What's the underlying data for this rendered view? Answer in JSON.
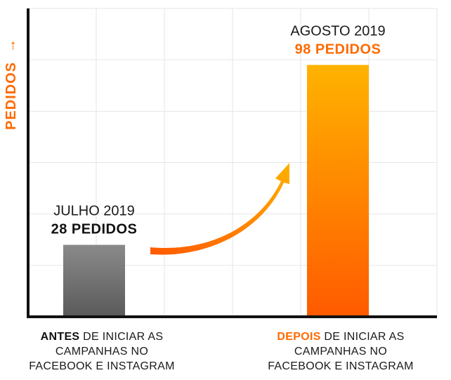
{
  "chart_data": {
    "type": "bar",
    "ylabel": "PEDIDOS",
    "ylabel_arrow": "→",
    "ylim": [
      0,
      120
    ],
    "grid": true,
    "categories": [
      {
        "highlight": "ANTES",
        "rest_line1": " DE INICIAR AS",
        "line2": "CAMPANHAS NO",
        "line3": "FACEBOOK E INSTAGRAM"
      },
      {
        "highlight": "DEPOIS",
        "rest_line1": " DE INICIAR AS",
        "line2": "CAMPANHAS NO",
        "line3": "FACEBOOK E INSTAGRAM"
      }
    ],
    "values": [
      28,
      98
    ],
    "data_labels": [
      {
        "period": "JULHO 2019",
        "count": "28 PEDIDOS"
      },
      {
        "period": "AGOSTO 2019",
        "count": "98 PEDIDOS"
      }
    ],
    "colors": {
      "bar_before_top": "#8a8a8a",
      "bar_before_bottom": "#5a5a5a",
      "bar_after_top": "#ffb300",
      "bar_after_bottom": "#ff5a00",
      "accent": "#ff6a00",
      "axis": "#111111",
      "grid": "#e6e6e6"
    },
    "annotation": "arrow-up-right-icon"
  }
}
